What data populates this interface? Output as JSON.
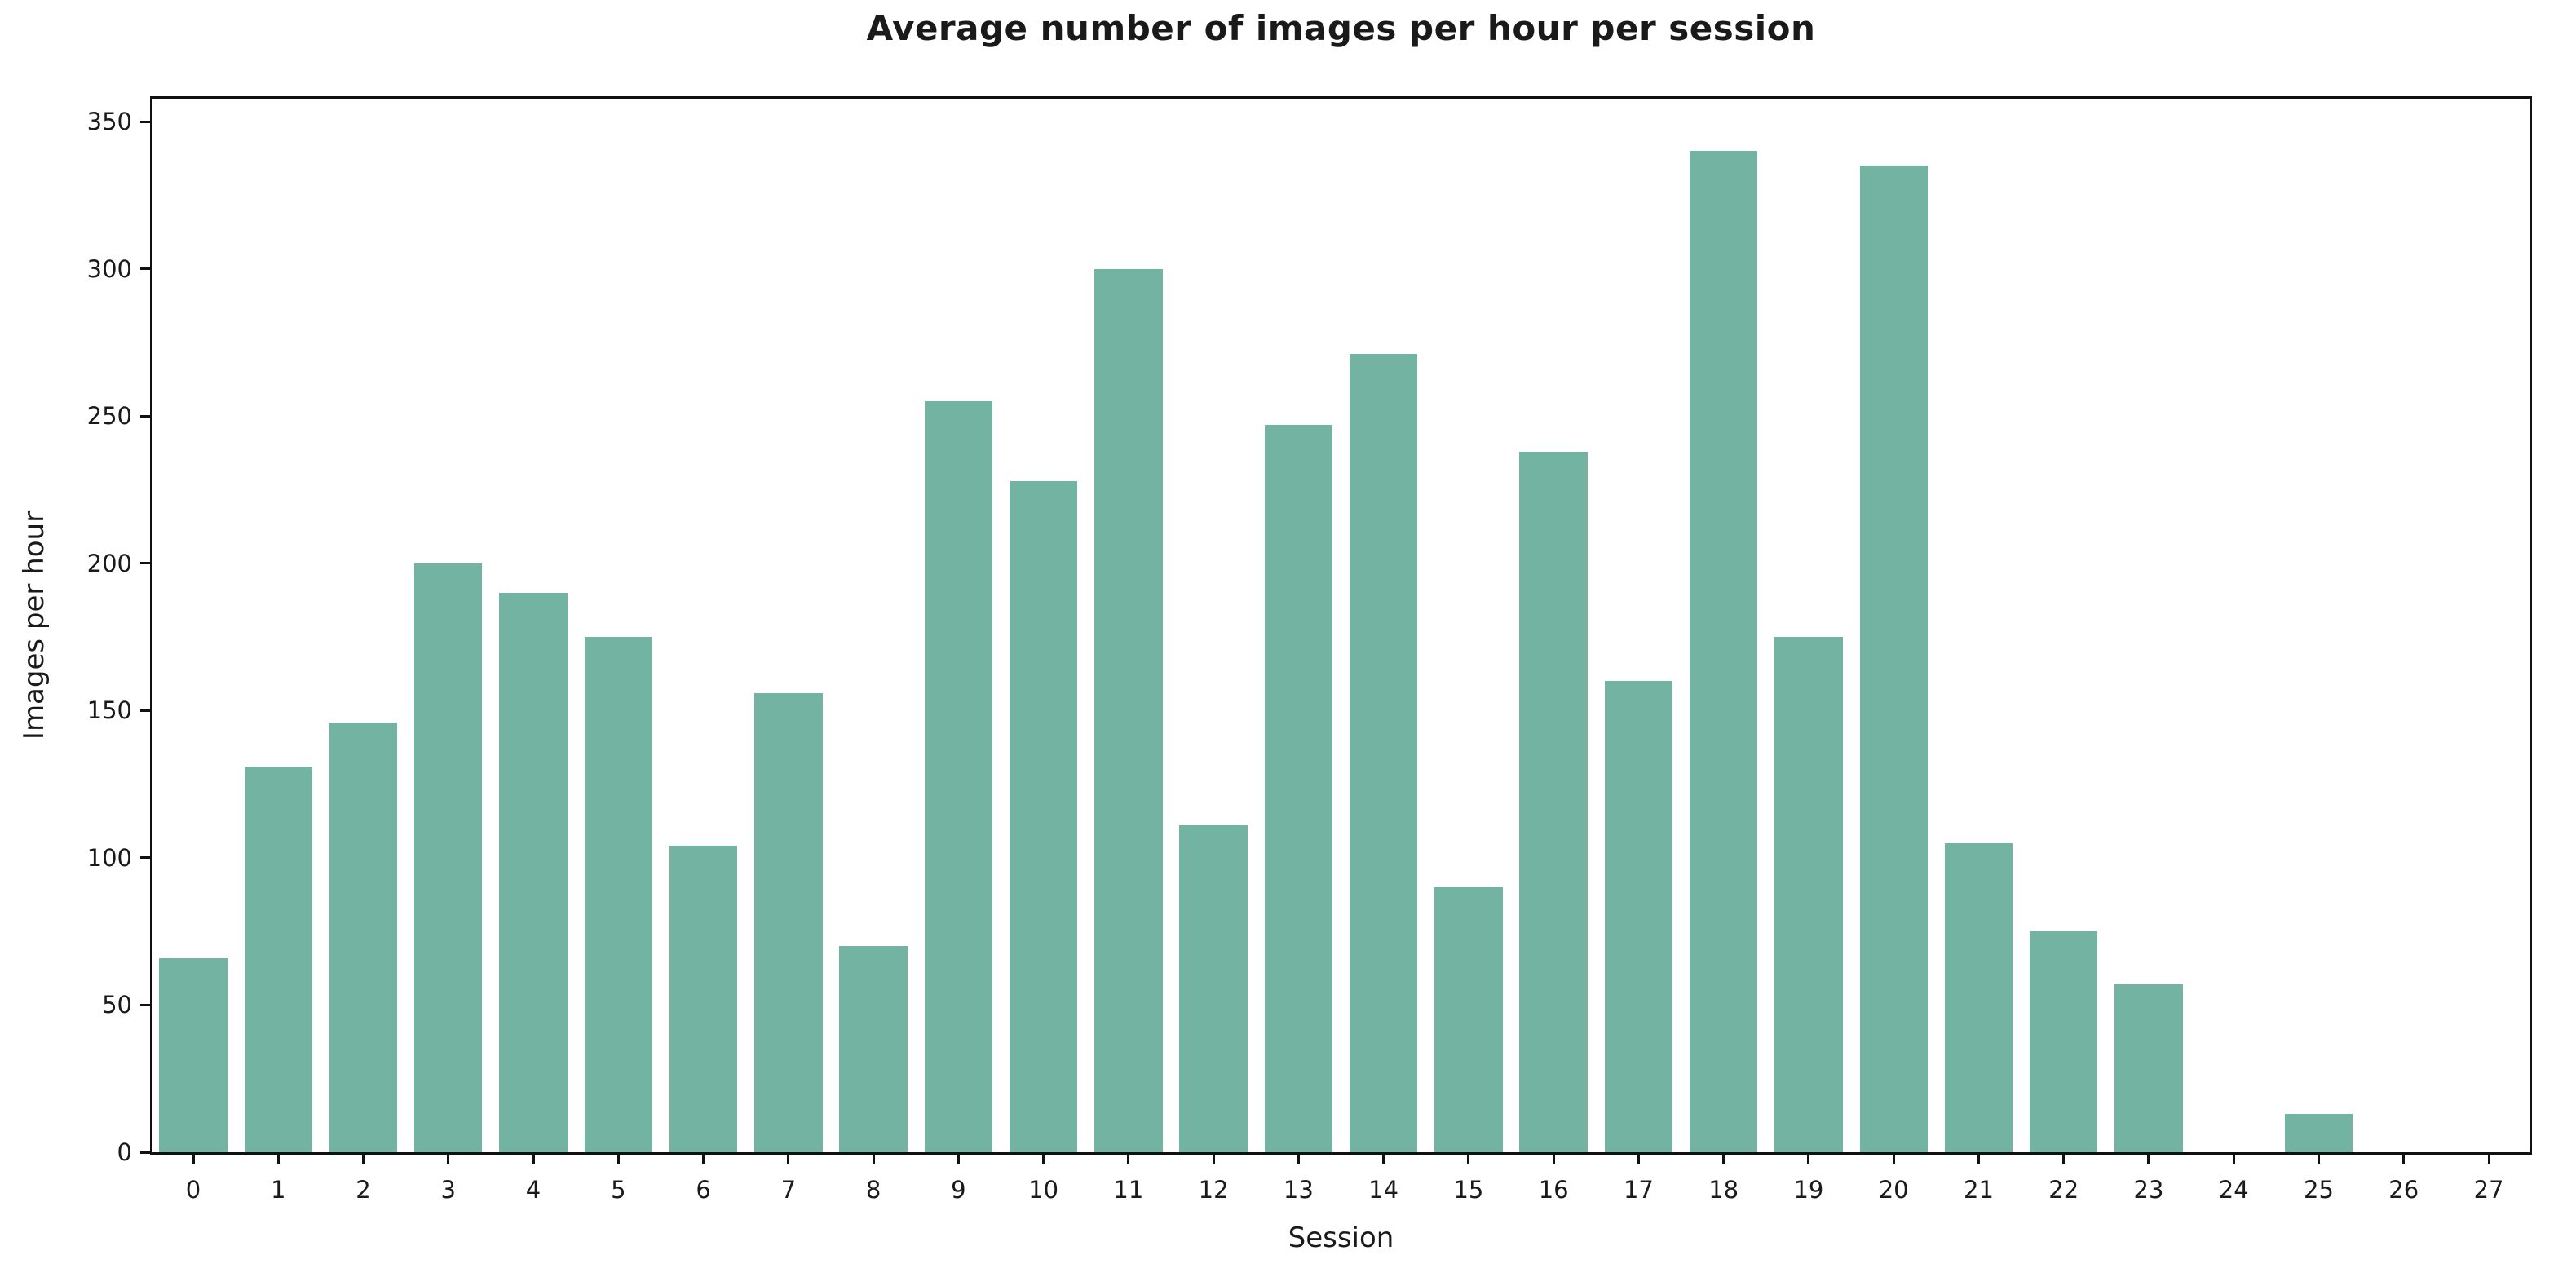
{
  "chart_data": {
    "type": "bar",
    "title": "Average number of images per hour per session",
    "xlabel": "Session",
    "ylabel": "Images per hour",
    "categories": [
      "0",
      "1",
      "2",
      "3",
      "4",
      "5",
      "6",
      "7",
      "8",
      "9",
      "10",
      "11",
      "12",
      "13",
      "14",
      "15",
      "16",
      "17",
      "18",
      "19",
      "20",
      "21",
      "22",
      "23",
      "24",
      "25",
      "26",
      "27"
    ],
    "values": [
      66,
      131,
      146,
      200,
      190,
      175,
      104,
      156,
      70,
      255,
      228,
      300,
      111,
      247,
      271,
      90,
      238,
      160,
      340,
      175,
      335,
      105,
      75,
      57,
      0,
      13,
      0,
      0
    ],
    "yticks": [
      0,
      50,
      100,
      150,
      200,
      250,
      300,
      350
    ],
    "ylim": [
      0,
      357.8
    ],
    "xlim_sessions": [
      -0.49,
      27.47
    ],
    "bar_color": "#72b4a1",
    "axis_color": "#111111",
    "text_color": "#1a1a1a",
    "grid": "off",
    "legend": "none",
    "title_bold": true
  }
}
